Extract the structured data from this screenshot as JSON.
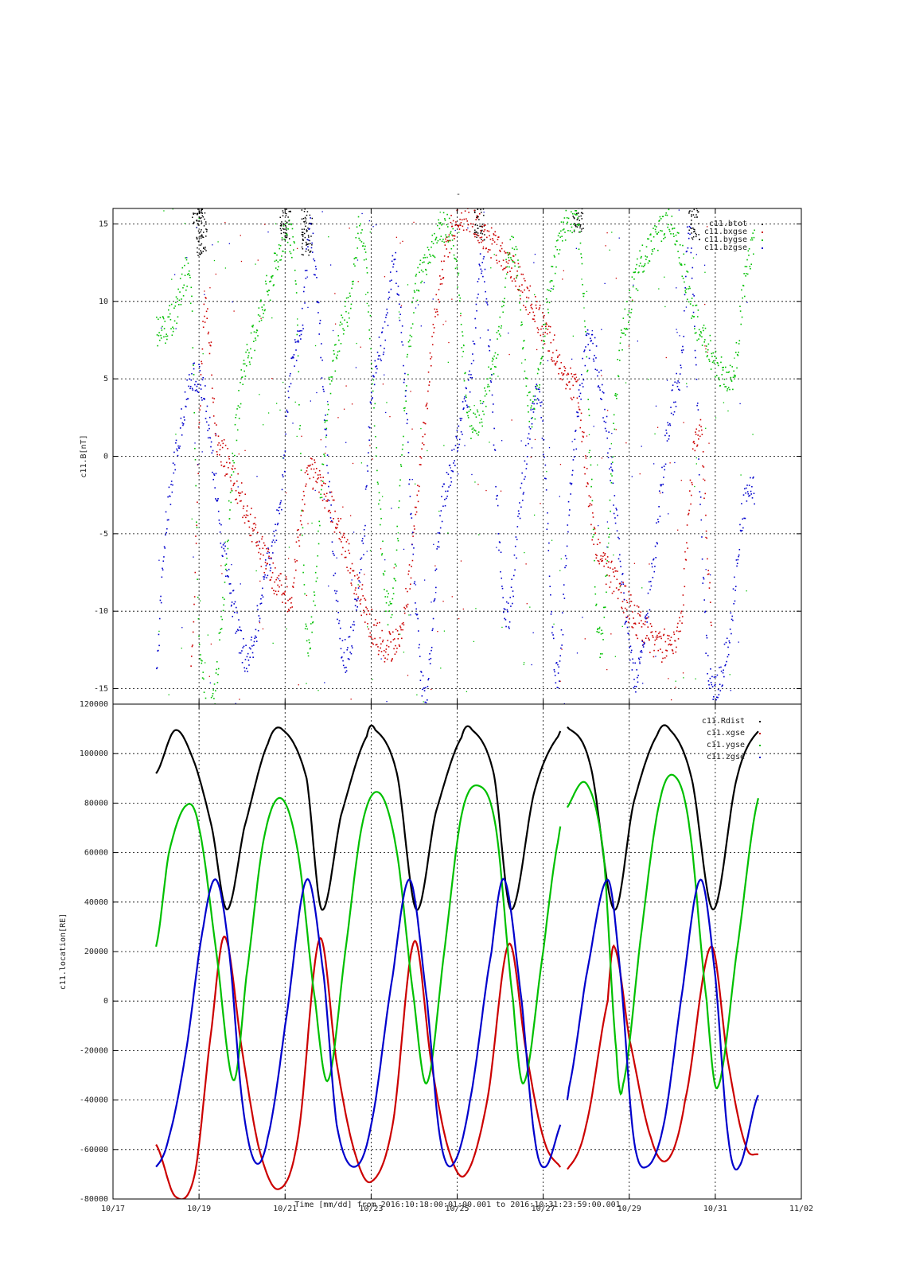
{
  "page_title": "-",
  "x_axis": {
    "label": "Time [mm/dd]  from 2016:10:18:00:01:00.001  to  2016:10:31:23:59:00.001",
    "ticks": [
      "10/17",
      "10/19",
      "10/21",
      "10/23",
      "10/25",
      "10/27",
      "10/29",
      "10/31",
      "11/02"
    ],
    "tick_days": [
      17,
      19,
      21,
      23,
      25,
      27,
      29,
      31,
      33
    ],
    "range_days": [
      17,
      33
    ],
    "data_range_days": [
      18.0,
      32.0
    ]
  },
  "chart_data": [
    {
      "type": "scatter",
      "ylabel": "c11.B[nT]",
      "ylim": [
        -16,
        16
      ],
      "yticks": [
        -15,
        -10,
        -5,
        0,
        5,
        10,
        15
      ],
      "grid": true,
      "legend_position": "top-right",
      "series": [
        {
          "name": "c11.btot",
          "color": "#000000",
          "note_points": [
            [
              18.95,
              15
            ],
            [
              19.05,
              13
            ],
            [
              21.0,
              14
            ],
            [
              21.5,
              13
            ],
            [
              25.5,
              14
            ],
            [
              27.8,
              14.5
            ],
            [
              30.5,
              14
            ]
          ]
        },
        {
          "name": "c11.bxgse",
          "color": "#cc0000",
          "points": [
            [
              18.8,
              -14
            ],
            [
              19.1,
              9
            ],
            [
              19.4,
              1
            ],
            [
              21.1,
              -9
            ],
            [
              21.3,
              -5
            ],
            [
              21.6,
              -1
            ],
            [
              23.6,
              -12
            ],
            [
              24.7,
              13
            ],
            [
              25.7,
              14
            ],
            [
              27.8,
              4
            ],
            [
              28.2,
              -6
            ],
            [
              30.1,
              -12
            ],
            [
              30.6,
              2
            ],
            [
              30.9,
              -10
            ]
          ]
        },
        {
          "name": "c11.bygse",
          "color": "#00c000",
          "points": [
            [
              18.0,
              8
            ],
            [
              18.4,
              9
            ],
            [
              18.8,
              10.5
            ],
            [
              19.0,
              -12
            ],
            [
              19.3,
              -16
            ],
            [
              19.9,
              3
            ],
            [
              20.3,
              8
            ],
            [
              20.6,
              11
            ],
            [
              21.2,
              13
            ],
            [
              21.5,
              -12
            ],
            [
              22.0,
              4
            ],
            [
              22.5,
              10
            ],
            [
              22.8,
              14
            ],
            [
              23.4,
              -10
            ],
            [
              23.9,
              8
            ],
            [
              24.3,
              13
            ],
            [
              24.9,
              14
            ],
            [
              25.3,
              2
            ],
            [
              25.9,
              7
            ],
            [
              26.3,
              13.5
            ],
            [
              26.7,
              3
            ],
            [
              27.1,
              10
            ],
            [
              27.5,
              15
            ],
            [
              27.9,
              12
            ],
            [
              28.3,
              -12
            ],
            [
              28.7,
              5
            ],
            [
              29.2,
              12
            ],
            [
              29.7,
              14.5
            ],
            [
              30.0,
              15
            ],
            [
              30.5,
              9
            ],
            [
              31.4,
              5
            ],
            [
              31.6,
              10
            ],
            [
              31.9,
              14
            ]
          ]
        },
        {
          "name": "c11.bzgse",
          "color": "#0000cc",
          "points": [
            [
              18.0,
              -13
            ],
            [
              18.2,
              -5
            ],
            [
              18.5,
              1
            ],
            [
              18.8,
              5
            ],
            [
              19.1,
              4
            ],
            [
              19.5,
              -5
            ],
            [
              20.1,
              -13
            ],
            [
              20.5,
              -8
            ],
            [
              20.9,
              -3
            ],
            [
              21.1,
              5
            ],
            [
              21.4,
              9
            ],
            [
              21.6,
              14
            ],
            [
              22.3,
              -12
            ],
            [
              22.8,
              -6
            ],
            [
              23.0,
              4
            ],
            [
              23.3,
              8
            ],
            [
              23.6,
              11
            ],
            [
              24.2,
              -15
            ],
            [
              24.6,
              -4
            ],
            [
              24.9,
              0
            ],
            [
              25.3,
              5
            ],
            [
              25.6,
              12
            ],
            [
              26.1,
              -10
            ],
            [
              26.5,
              -2
            ],
            [
              26.9,
              4
            ],
            [
              27.3,
              -14
            ],
            [
              27.6,
              -3
            ],
            [
              28.0,
              7
            ],
            [
              28.3,
              5
            ],
            [
              28.6,
              -2
            ],
            [
              29.1,
              -14
            ],
            [
              29.5,
              -8
            ],
            [
              29.9,
              2
            ],
            [
              30.2,
              6
            ],
            [
              30.4,
              14
            ],
            [
              30.8,
              -13
            ],
            [
              31.3,
              -12
            ],
            [
              31.6,
              -4
            ],
            [
              31.9,
              -2
            ]
          ]
        }
      ]
    },
    {
      "type": "line",
      "ylabel": "c11.location[RE]",
      "ylim": [
        -80000,
        120000
      ],
      "yticks": [
        -80000,
        -60000,
        -40000,
        -20000,
        0,
        20000,
        40000,
        60000,
        80000,
        100000,
        120000
      ],
      "grid": true,
      "legend_position": "top-right",
      "gap_days": [
        27.4,
        27.55
      ],
      "series": [
        {
          "name": "c11.Rdist",
          "color": "#000000",
          "points": [
            [
              18.0,
              92000
            ],
            [
              18.45,
              109500
            ],
            [
              18.9,
              96000
            ],
            [
              19.3,
              70000
            ],
            [
              19.65,
              37000
            ],
            [
              20.05,
              70000
            ],
            [
              20.6,
              104000
            ],
            [
              20.95,
              109500
            ],
            [
              21.5,
              90000
            ],
            [
              21.85,
              37000
            ],
            [
              22.3,
              75000
            ],
            [
              22.9,
              107000
            ],
            [
              23.1,
              109500
            ],
            [
              23.6,
              92000
            ],
            [
              24.05,
              37000
            ],
            [
              24.5,
              76000
            ],
            [
              25.1,
              106500
            ],
            [
              25.35,
              109500
            ],
            [
              25.85,
              92000
            ],
            [
              26.25,
              37000
            ],
            [
              26.8,
              85000
            ],
            [
              27.35,
              107000
            ],
            [
              27.6,
              110000
            ],
            [
              28.1,
              95000
            ],
            [
              28.65,
              37000
            ],
            [
              29.1,
              80000
            ],
            [
              29.65,
              107500
            ],
            [
              29.95,
              109500
            ],
            [
              30.45,
              90000
            ],
            [
              30.95,
              37000
            ],
            [
              31.5,
              90000
            ],
            [
              32.0,
              109000
            ]
          ]
        },
        {
          "name": "c11.xgse",
          "color": "#cc0000",
          "points": [
            [
              18.0,
              -58000
            ],
            [
              18.45,
              -79000
            ],
            [
              18.9,
              -70000
            ],
            [
              19.3,
              -10000
            ],
            [
              19.6,
              26000
            ],
            [
              20.0,
              -20000
            ],
            [
              20.4,
              -60000
            ],
            [
              20.85,
              -76000
            ],
            [
              21.3,
              -55000
            ],
            [
              21.8,
              25000
            ],
            [
              22.2,
              -25000
            ],
            [
              22.6,
              -60000
            ],
            [
              23.0,
              -73000
            ],
            [
              23.5,
              -50000
            ],
            [
              24.0,
              24000
            ],
            [
              24.4,
              -25000
            ],
            [
              24.8,
              -60000
            ],
            [
              25.2,
              -70000
            ],
            [
              25.7,
              -40000
            ],
            [
              26.2,
              23000
            ],
            [
              26.6,
              -20000
            ],
            [
              27.0,
              -55000
            ],
            [
              27.35,
              -66000
            ],
            [
              27.6,
              -67000
            ],
            [
              28.0,
              -50000
            ],
            [
              28.5,
              0
            ],
            [
              28.65,
              22000
            ],
            [
              29.0,
              -15000
            ],
            [
              29.5,
              -55000
            ],
            [
              29.9,
              -64000
            ],
            [
              30.3,
              -40000
            ],
            [
              30.9,
              22000
            ],
            [
              31.3,
              -25000
            ],
            [
              31.7,
              -58000
            ],
            [
              32.0,
              -62000
            ]
          ]
        },
        {
          "name": "c11.ygse",
          "color": "#00c000",
          "points": [
            [
              18.0,
              22000
            ],
            [
              18.3,
              60000
            ],
            [
              18.7,
              79000
            ],
            [
              19.0,
              70000
            ],
            [
              19.4,
              20000
            ],
            [
              19.8,
              -32000
            ],
            [
              20.1,
              10000
            ],
            [
              20.5,
              65000
            ],
            [
              20.9,
              82000
            ],
            [
              21.3,
              60000
            ],
            [
              21.7,
              0
            ],
            [
              22.0,
              -32000
            ],
            [
              22.4,
              20000
            ],
            [
              22.8,
              72000
            ],
            [
              23.2,
              84000
            ],
            [
              23.6,
              60000
            ],
            [
              24.0,
              0
            ],
            [
              24.3,
              -33000
            ],
            [
              24.7,
              20000
            ],
            [
              25.1,
              75000
            ],
            [
              25.5,
              87000
            ],
            [
              25.9,
              70000
            ],
            [
              26.3,
              0
            ],
            [
              26.55,
              -33000
            ],
            [
              27.0,
              20000
            ],
            [
              27.35,
              65000
            ],
            [
              27.55,
              78000
            ],
            [
              28.0,
              88000
            ],
            [
              28.4,
              60000
            ],
            [
              28.7,
              -20000
            ],
            [
              28.85,
              -34000
            ],
            [
              29.3,
              30000
            ],
            [
              29.7,
              80000
            ],
            [
              30.05,
              91000
            ],
            [
              30.4,
              70000
            ],
            [
              30.8,
              0
            ],
            [
              31.05,
              -35000
            ],
            [
              31.5,
              20000
            ],
            [
              32.0,
              82000
            ]
          ]
        },
        {
          "name": "c11.zgse",
          "color": "#0000cc",
          "points": [
            [
              18.0,
              -67000
            ],
            [
              18.3,
              -55000
            ],
            [
              18.7,
              -20000
            ],
            [
              19.1,
              30000
            ],
            [
              19.4,
              49000
            ],
            [
              19.7,
              20000
            ],
            [
              20.0,
              -40000
            ],
            [
              20.3,
              -65000
            ],
            [
              20.6,
              -55000
            ],
            [
              21.0,
              -10000
            ],
            [
              21.5,
              49000
            ],
            [
              21.9,
              10000
            ],
            [
              22.2,
              -50000
            ],
            [
              22.6,
              -67000
            ],
            [
              23.0,
              -50000
            ],
            [
              23.5,
              10000
            ],
            [
              23.9,
              49000
            ],
            [
              24.3,
              0
            ],
            [
              24.6,
              -55000
            ],
            [
              24.9,
              -66000
            ],
            [
              25.3,
              -40000
            ],
            [
              25.8,
              20000
            ],
            [
              26.1,
              49000
            ],
            [
              26.5,
              0
            ],
            [
              26.8,
              -55000
            ],
            [
              27.05,
              -67000
            ],
            [
              27.4,
              -50000
            ],
            [
              27.6,
              -35000
            ],
            [
              28.0,
              10000
            ],
            [
              28.5,
              49000
            ],
            [
              28.8,
              10000
            ],
            [
              29.1,
              -55000
            ],
            [
              29.4,
              -67000
            ],
            [
              29.8,
              -50000
            ],
            [
              30.2,
              0
            ],
            [
              30.65,
              49000
            ],
            [
              31.0,
              10000
            ],
            [
              31.3,
              -55000
            ],
            [
              31.55,
              -67000
            ],
            [
              32.0,
              -38000
            ]
          ]
        }
      ]
    }
  ]
}
